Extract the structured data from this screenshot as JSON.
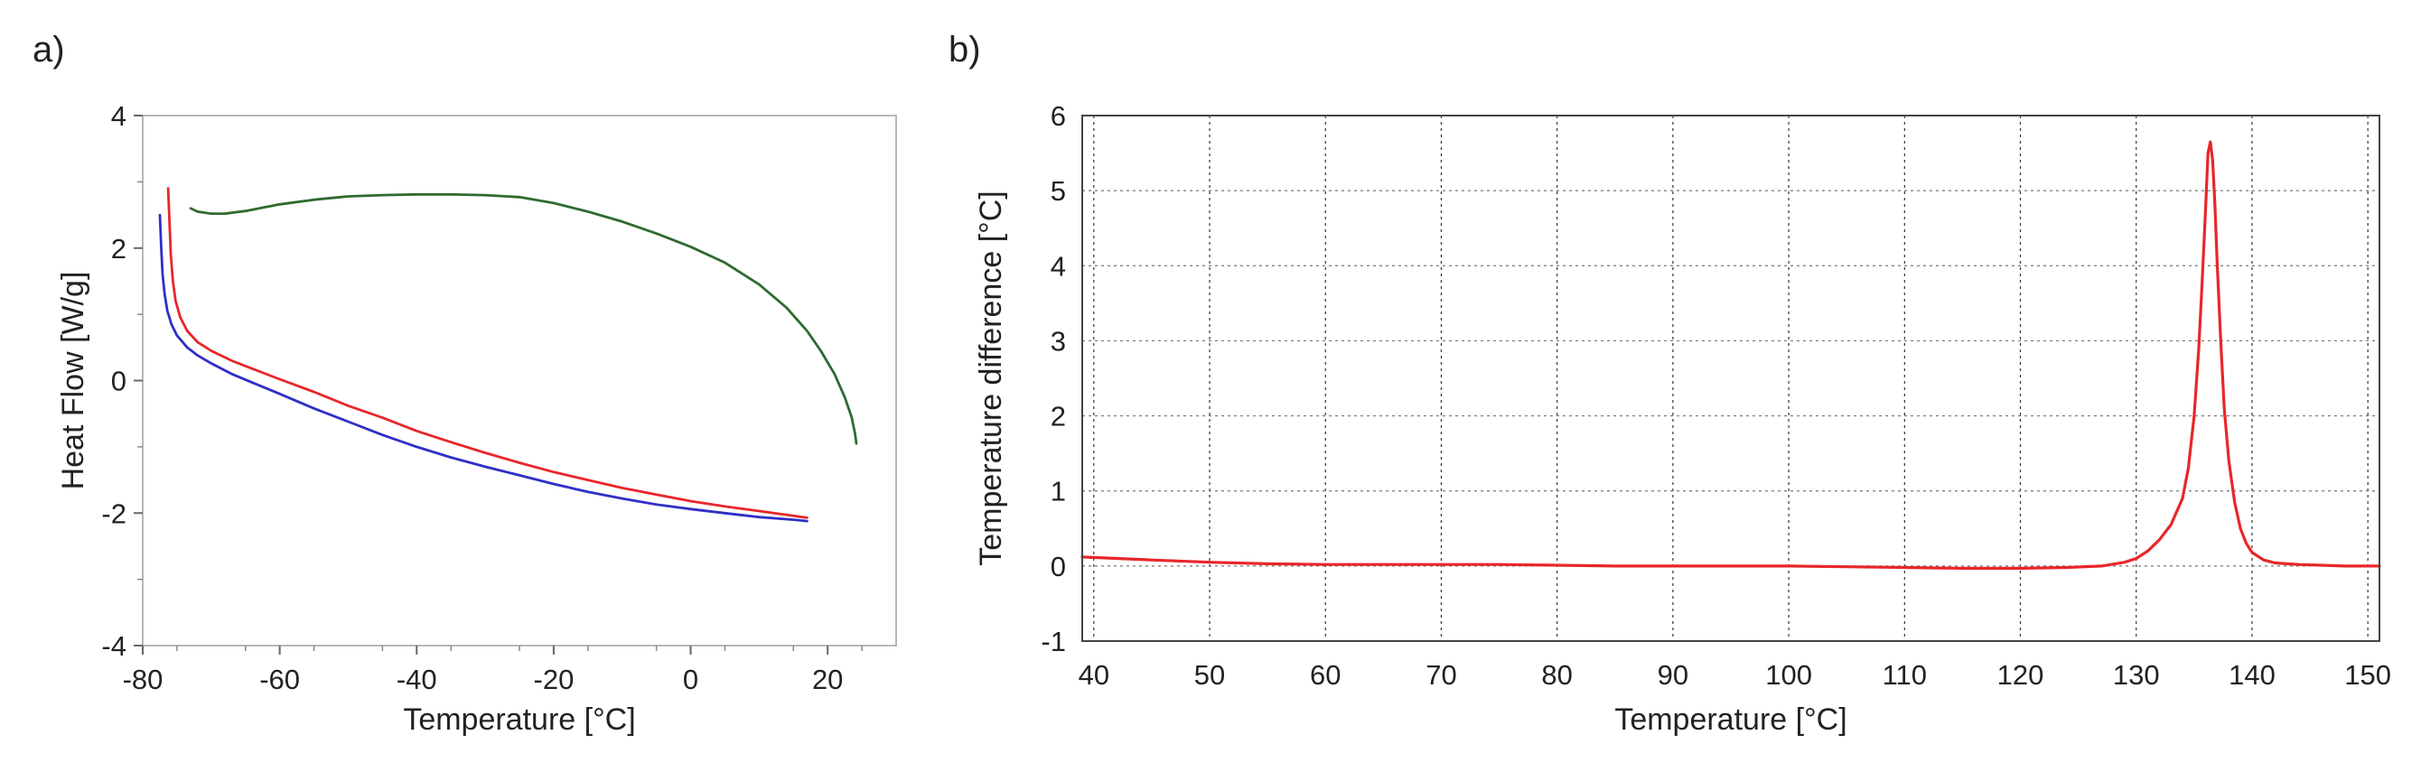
{
  "chart_data": [
    {
      "type": "line",
      "panel_label": "a)",
      "xlabel": "Temperature [°C]",
      "ylabel": "Heat Flow [W/g]",
      "xlim": [
        -80,
        30
      ],
      "ylim": [
        -4,
        4
      ],
      "x_ticks": [
        -80,
        -60,
        -40,
        -20,
        0,
        20
      ],
      "y_ticks": [
        -4,
        -2,
        0,
        2,
        4
      ],
      "grid": false,
      "series": [
        {
          "color": "#2e6b30",
          "x": [
            -73,
            -72,
            -70,
            -68,
            -65,
            -62,
            -60,
            -55,
            -50,
            -45,
            -40,
            -35,
            -30,
            -25,
            -20,
            -15,
            -10,
            -5,
            0,
            5,
            10,
            14,
            17,
            19,
            21,
            22.5,
            23.5,
            24,
            24.2
          ],
          "y": [
            2.6,
            2.55,
            2.52,
            2.52,
            2.56,
            2.62,
            2.66,
            2.73,
            2.78,
            2.8,
            2.81,
            2.81,
            2.8,
            2.77,
            2.68,
            2.55,
            2.4,
            2.22,
            2.02,
            1.78,
            1.45,
            1.1,
            0.75,
            0.45,
            0.1,
            -0.25,
            -0.55,
            -0.8,
            -0.95
          ]
        },
        {
          "color": "#e8262a",
          "x": [
            -76.3,
            -76.1,
            -75.9,
            -75.6,
            -75.2,
            -74.5,
            -73.5,
            -72,
            -70,
            -67,
            -64,
            -60,
            -55,
            -50,
            -45,
            -40,
            -35,
            -30,
            -25,
            -20,
            -15,
            -10,
            -5,
            0,
            5,
            10,
            15,
            17
          ],
          "y": [
            2.9,
            2.4,
            1.9,
            1.5,
            1.2,
            0.95,
            0.75,
            0.58,
            0.45,
            0.3,
            0.18,
            0.02,
            -0.17,
            -0.38,
            -0.56,
            -0.76,
            -0.93,
            -1.09,
            -1.24,
            -1.38,
            -1.5,
            -1.62,
            -1.72,
            -1.82,
            -1.9,
            -1.97,
            -2.04,
            -2.07
          ]
        },
        {
          "color": "#2f2fc8",
          "x": [
            -77.5,
            -77.3,
            -77.1,
            -76.8,
            -76.4,
            -75.8,
            -75,
            -73.5,
            -72,
            -70,
            -67,
            -64,
            -60,
            -55,
            -50,
            -45,
            -40,
            -35,
            -30,
            -25,
            -20,
            -15,
            -10,
            -5,
            0,
            5,
            10,
            15,
            17
          ],
          "y": [
            2.5,
            2.0,
            1.6,
            1.3,
            1.05,
            0.85,
            0.68,
            0.5,
            0.38,
            0.26,
            0.1,
            -0.03,
            -0.2,
            -0.42,
            -0.62,
            -0.82,
            -1.0,
            -1.16,
            -1.3,
            -1.43,
            -1.56,
            -1.68,
            -1.78,
            -1.87,
            -1.94,
            -2.0,
            -2.06,
            -2.1,
            -2.12
          ]
        }
      ]
    },
    {
      "type": "line",
      "panel_label": "b)",
      "xlabel": "Temperature [°C]",
      "ylabel": "Temperature difference [°C]",
      "xlim": [
        39,
        151
      ],
      "ylim": [
        -1,
        6
      ],
      "x_ticks": [
        40,
        50,
        60,
        70,
        80,
        90,
        100,
        110,
        120,
        130,
        140,
        150
      ],
      "y_ticks": [
        -1,
        0,
        1,
        2,
        3,
        4,
        5,
        6
      ],
      "grid": true,
      "series": [
        {
          "color": "#e8262a",
          "x": [
            39,
            42,
            45,
            50,
            55,
            60,
            65,
            70,
            75,
            80,
            85,
            90,
            95,
            100,
            105,
            110,
            115,
            120,
            124,
            127,
            129,
            130,
            131,
            132,
            133,
            134,
            134.5,
            135,
            135.4,
            135.7,
            136,
            136.2,
            136.4,
            136.6,
            136.8,
            137,
            137.3,
            137.6,
            138,
            138.5,
            139,
            139.5,
            140,
            141,
            142,
            144,
            146,
            148,
            150,
            151
          ],
          "y": [
            0.12,
            0.1,
            0.08,
            0.05,
            0.03,
            0.02,
            0.02,
            0.02,
            0.02,
            0.01,
            0.0,
            0.0,
            0.0,
            0.0,
            -0.01,
            -0.02,
            -0.03,
            -0.03,
            -0.02,
            0.0,
            0.05,
            0.1,
            0.2,
            0.35,
            0.55,
            0.9,
            1.3,
            2.0,
            2.9,
            3.8,
            4.8,
            5.5,
            5.65,
            5.4,
            4.8,
            4.0,
            3.0,
            2.1,
            1.4,
            0.85,
            0.5,
            0.3,
            0.18,
            0.08,
            0.04,
            0.02,
            0.01,
            0.0,
            0.0,
            0.0
          ]
        }
      ]
    }
  ]
}
